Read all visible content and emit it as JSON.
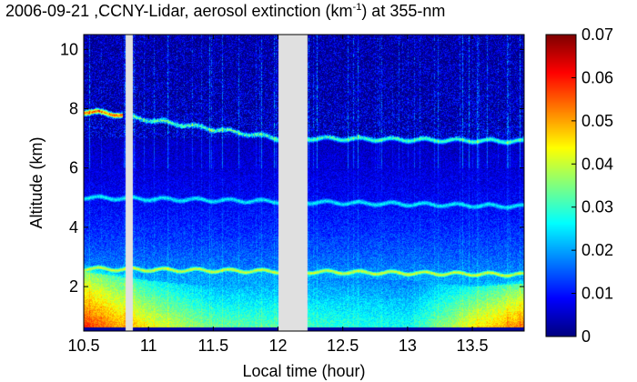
{
  "chart_data": {
    "type": "heatmap",
    "title_prefix": "2006-09-21 ,CCNY-Lidar, aerosol extinction (km",
    "title_exponent": "-1",
    "title_suffix": ") at 355-nm",
    "xlabel": "Local time (hour)",
    "ylabel": "Altitude (km)",
    "xlim": [
      10.5,
      13.9
    ],
    "ylim": [
      0.5,
      10.5
    ],
    "x_ticks": [
      "10.5",
      "11",
      "11.5",
      "12",
      "12.5",
      "13",
      "13.5"
    ],
    "x_tick_values": [
      10.5,
      11,
      11.5,
      12,
      12.5,
      13,
      13.5
    ],
    "y_ticks": [
      "2",
      "4",
      "6",
      "8",
      "10"
    ],
    "y_tick_values": [
      2,
      4,
      6,
      8,
      10
    ],
    "colorbar": {
      "min": 0,
      "max": 0.07,
      "ticks": [
        "0",
        "0.01",
        "0.02",
        "0.03",
        "0.04",
        "0.05",
        "0.06",
        "0.07"
      ],
      "tick_values": [
        0,
        0.01,
        0.02,
        0.03,
        0.04,
        0.05,
        0.06,
        0.07
      ],
      "colormap": "jet"
    },
    "data_gaps_hours": [
      [
        10.82,
        10.88
      ],
      [
        12.0,
        12.23
      ]
    ],
    "layers": [
      {
        "feature": "cirrus",
        "start_x": 10.5,
        "end_x": 10.8,
        "start_y": 7.9,
        "end_y": 7.8,
        "value": 0.055
      },
      {
        "feature": "cirrus",
        "start_x": 10.88,
        "end_x": 12.0,
        "start_y": 7.7,
        "end_y": 7.0,
        "value": 0.03
      },
      {
        "feature": "cirrus",
        "start_x": 12.23,
        "end_x": 13.9,
        "start_y": 7.0,
        "end_y": 6.9,
        "value": 0.03
      },
      {
        "feature": "layer",
        "start_x": 10.5,
        "end_x": 13.9,
        "start_y": 5.0,
        "end_y": 4.7,
        "value": 0.025
      },
      {
        "feature": "pbl-top",
        "start_x": 10.5,
        "end_x": 13.9,
        "start_y": 2.6,
        "end_y": 2.4,
        "value": 0.04
      }
    ],
    "boundary_layer": [
      {
        "x": 10.5,
        "top": 2.5,
        "value": 0.06
      },
      {
        "x": 11.0,
        "top": 2.2,
        "value": 0.045
      },
      {
        "x": 11.5,
        "top": 2.0,
        "value": 0.035
      },
      {
        "x": 12.5,
        "top": 2.3,
        "value": 0.03
      },
      {
        "x": 13.0,
        "top": 2.2,
        "value": 0.028
      },
      {
        "x": 13.5,
        "top": 2.0,
        "value": 0.045
      },
      {
        "x": 13.9,
        "top": 2.1,
        "value": 0.055
      }
    ]
  }
}
